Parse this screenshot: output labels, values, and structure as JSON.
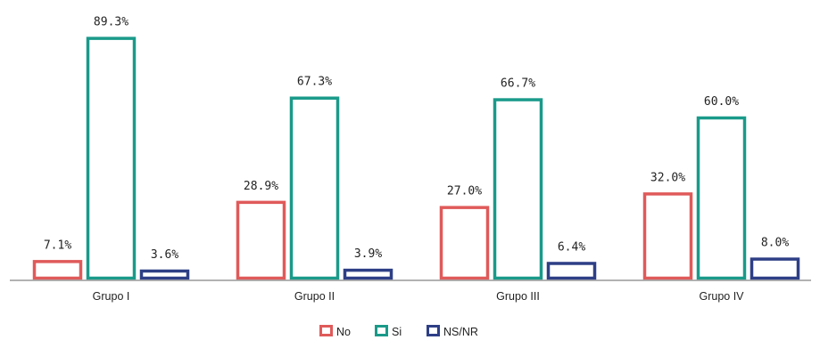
{
  "chart_data": {
    "type": "bar",
    "title": "",
    "xlabel": "",
    "ylabel": "",
    "ylim": [
      0,
      100
    ],
    "grid": false,
    "legend": "bottom",
    "categories": [
      "Grupo I",
      "Grupo II",
      "Grupo III",
      "Grupo IV"
    ],
    "series": [
      {
        "name": "No",
        "color": "#e05a5a",
        "values": [
          7.1,
          28.9,
          27.0,
          32.0
        ],
        "labels": [
          "7.1%",
          "28.9%",
          "27.0%",
          "32.0%"
        ]
      },
      {
        "name": "Si",
        "color": "#1a9a8a",
        "values": [
          89.3,
          67.3,
          66.7,
          60.0
        ],
        "labels": [
          "89.3%",
          "67.3%",
          "66.7%",
          "60.0%"
        ]
      },
      {
        "name": "NS/NR",
        "color": "#2e3f86",
        "values": [
          3.6,
          3.9,
          6.4,
          8.0
        ],
        "labels": [
          "3.6%",
          "3.9%",
          "6.4%",
          "8.0%"
        ]
      }
    ]
  }
}
